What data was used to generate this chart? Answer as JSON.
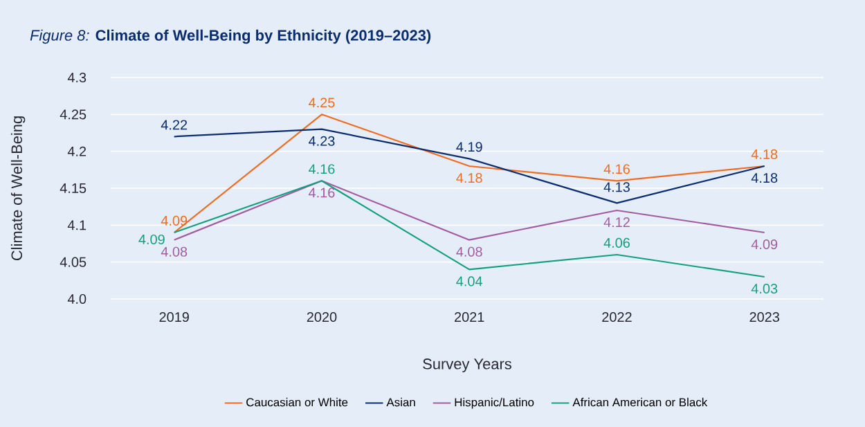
{
  "chart_data": {
    "type": "line",
    "title": "*Figure 8:* **Climate of Well-Being by Ethnicity (2019–2023)**",
    "xlabel": "Survey Years",
    "ylabel": "Climate of Well-Being",
    "categories": [
      "2019",
      "2020",
      "2021",
      "2022",
      "2023"
    ],
    "series": [
      {
        "name": "Caucasian or White",
        "color": "#f26b21",
        "values": [
          4.09,
          4.25,
          4.18,
          4.16,
          4.18
        ]
      },
      {
        "name": "Asian",
        "color": "#0b2d6e",
        "values": [
          4.22,
          4.23,
          4.19,
          4.13,
          4.18
        ]
      },
      {
        "name": "Hispanic/Latino",
        "color": "#a35c9f",
        "values": [
          4.08,
          4.16,
          4.08,
          4.12,
          4.09
        ]
      },
      {
        "name": "African American or Black",
        "color": "#12a07f",
        "values": [
          4.09,
          4.16,
          4.04,
          4.06,
          4.03
        ]
      }
    ],
    "ylim": [
      4.0,
      4.3
    ],
    "yticks": [
      {
        "value": 4.0,
        "label": "4.0"
      },
      4.05,
      4.1,
      4.15,
      4.2,
      4.25,
      4.3
    ],
    "grid": "y",
    "legend": "bottom",
    "marker": "none",
    "line_style": "solid",
    "data_labels": true
  }
}
